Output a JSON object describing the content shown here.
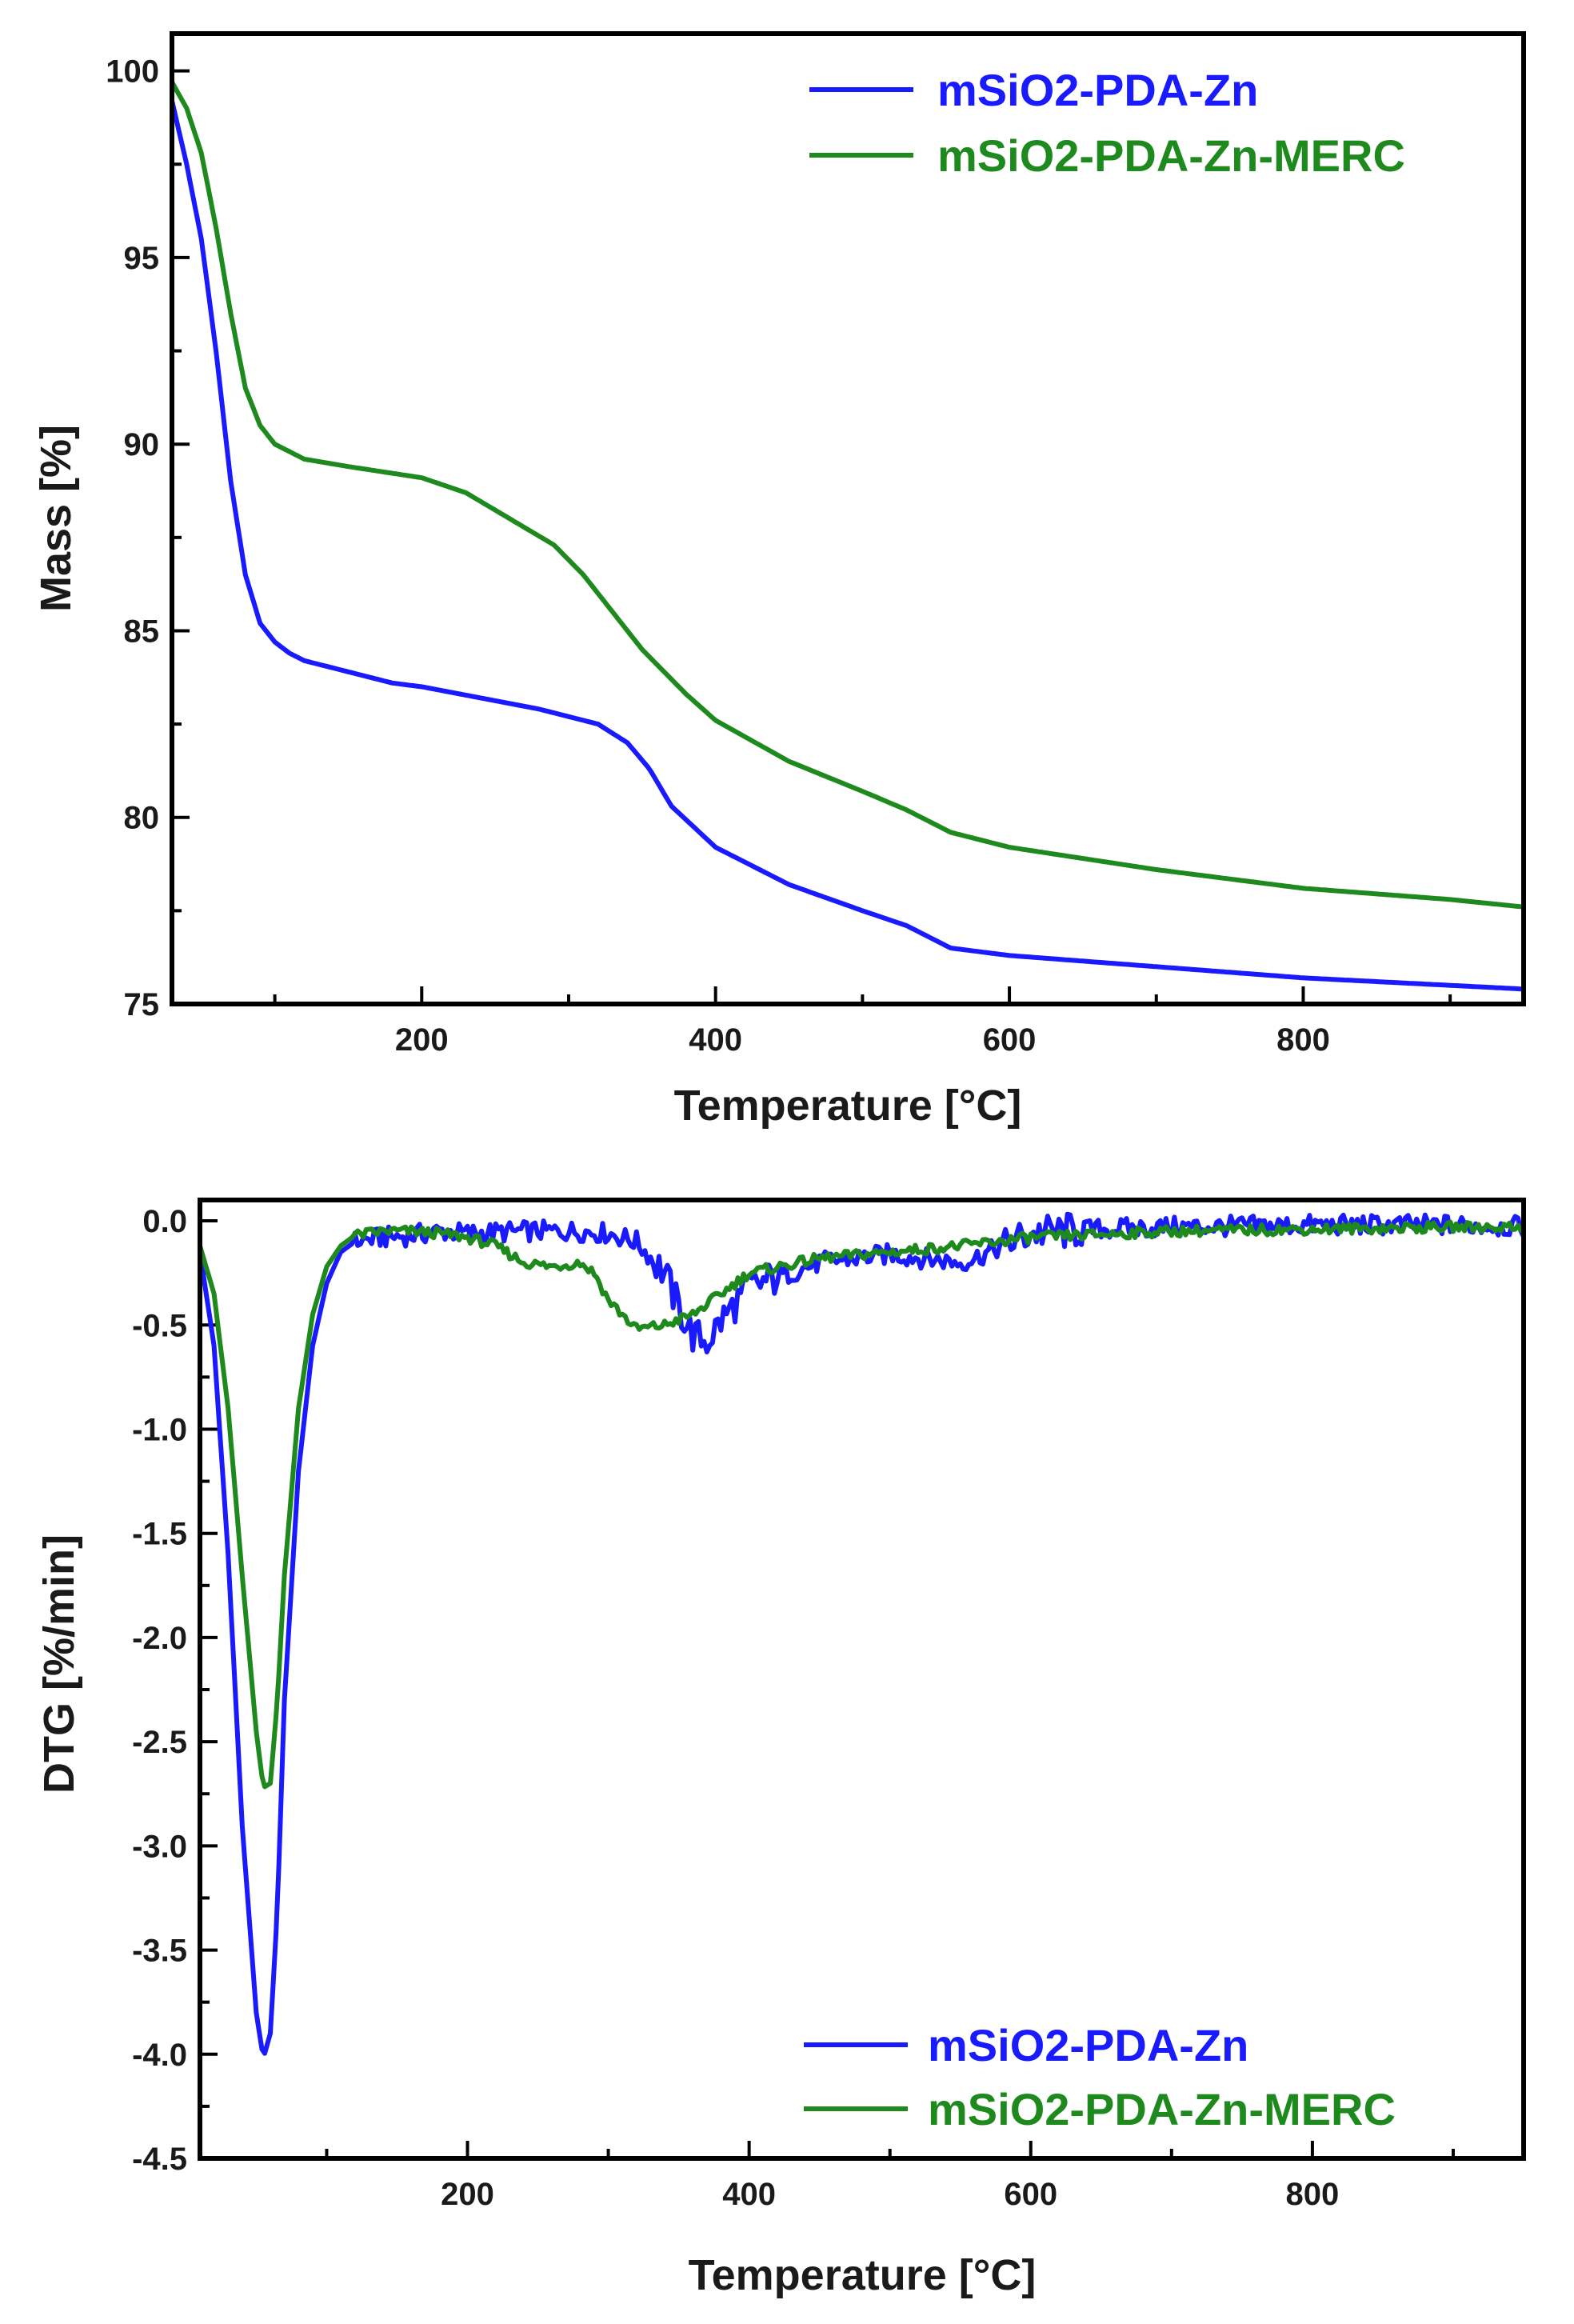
{
  "chart_data": [
    {
      "type": "line",
      "title": "",
      "xlabel": "Temperature [°C]",
      "ylabel": "Mass [%]",
      "xlim": [
        30,
        950
      ],
      "ylim": [
        75,
        101
      ],
      "xticks": [
        200,
        400,
        600,
        800
      ],
      "xtick_labels": [
        "200",
        "400",
        "600",
        "800"
      ],
      "yticks": [
        75,
        80,
        85,
        90,
        95,
        100
      ],
      "ytick_labels": [
        "75",
        "80",
        "85",
        "90",
        "95",
        "100"
      ],
      "grid": false,
      "legend_position": "top-right",
      "series": [
        {
          "name": "mSiO2-PDA-Zn",
          "color": "#1a1aff",
          "x": [
            30,
            40,
            50,
            60,
            70,
            80,
            90,
            100,
            110,
            120,
            140,
            160,
            180,
            200,
            240,
            280,
            320,
            340,
            355,
            370,
            400,
            450,
            500,
            530,
            560,
            600,
            700,
            800,
            900,
            950
          ],
          "y": [
            99.2,
            97.5,
            95.5,
            92.5,
            89.0,
            86.5,
            85.2,
            84.7,
            84.4,
            84.2,
            84.0,
            83.8,
            83.6,
            83.5,
            83.2,
            82.9,
            82.5,
            82.0,
            81.3,
            80.3,
            79.2,
            78.2,
            77.5,
            77.1,
            76.5,
            76.3,
            76.0,
            75.7,
            75.5,
            75.4
          ]
        },
        {
          "name": "mSiO2-PDA-Zn-MERC",
          "color": "#1e8a1e",
          "x": [
            30,
            40,
            50,
            60,
            70,
            80,
            90,
            100,
            120,
            150,
            200,
            230,
            260,
            290,
            310,
            330,
            350,
            380,
            400,
            450,
            500,
            530,
            560,
            600,
            700,
            800,
            900,
            950
          ],
          "y": [
            99.7,
            99.0,
            97.8,
            95.8,
            93.5,
            91.5,
            90.5,
            90.0,
            89.6,
            89.4,
            89.1,
            88.7,
            88.0,
            87.3,
            86.5,
            85.5,
            84.5,
            83.3,
            82.6,
            81.5,
            80.7,
            80.2,
            79.6,
            79.2,
            78.6,
            78.1,
            77.8,
            77.6
          ]
        }
      ]
    },
    {
      "type": "line",
      "title": "",
      "xlabel": "Temperature [°C]",
      "ylabel": "DTG [%/min]",
      "xlim": [
        10,
        950
      ],
      "ylim": [
        -4.5,
        0.1
      ],
      "xticks": [
        200,
        400,
        600,
        800
      ],
      "xtick_labels": [
        "200",
        "400",
        "600",
        "800"
      ],
      "yticks": [
        0.0,
        -0.5,
        -1.0,
        -1.5,
        -2.0,
        -2.5,
        -3.0,
        -3.5,
        -4.0,
        -4.5
      ],
      "ytick_labels": [
        "0.0",
        "-0.5",
        "-1.0",
        "-1.5",
        "-2.0",
        "-2.5",
        "-3.0",
        "-3.5",
        "-4.0",
        "-4.5"
      ],
      "grid": false,
      "legend_position": "bottom-right",
      "series": [
        {
          "name": "mSiO2-PDA-Zn",
          "color": "#1a1aff",
          "x": [
            10,
            20,
            30,
            40,
            50,
            55,
            60,
            65,
            70,
            80,
            90,
            100,
            110,
            120,
            140,
            160,
            180,
            200,
            240,
            280,
            300,
            320,
            340,
            350,
            360,
            370,
            380,
            400,
            450,
            500,
            550,
            560,
            600,
            650,
            700,
            800,
            900,
            950
          ],
          "y": [
            -0.15,
            -0.6,
            -1.6,
            -2.9,
            -3.8,
            -4.02,
            -3.9,
            -3.3,
            -2.3,
            -1.2,
            -0.6,
            -0.3,
            -0.15,
            -0.1,
            -0.08,
            -0.07,
            -0.05,
            -0.06,
            -0.05,
            -0.05,
            -0.06,
            -0.1,
            -0.25,
            -0.42,
            -0.55,
            -0.58,
            -0.48,
            -0.32,
            -0.2,
            -0.16,
            -0.2,
            -0.18,
            -0.06,
            -0.04,
            -0.03,
            -0.02,
            -0.02,
            -0.03
          ]
        },
        {
          "name": "mSiO2-PDA-Zn-MERC",
          "color": "#1e8a1e",
          "x": [
            10,
            20,
            30,
            40,
            50,
            55,
            60,
            65,
            70,
            80,
            90,
            100,
            110,
            120,
            140,
            160,
            180,
            200,
            220,
            240,
            260,
            280,
            290,
            300,
            320,
            340,
            360,
            380,
            400,
            450,
            500,
            550,
            600,
            700,
            800,
            900,
            950
          ],
          "y": [
            -0.12,
            -0.35,
            -0.9,
            -1.7,
            -2.45,
            -2.72,
            -2.7,
            -2.3,
            -1.7,
            -0.9,
            -0.45,
            -0.22,
            -0.12,
            -0.07,
            -0.05,
            -0.05,
            -0.06,
            -0.08,
            -0.12,
            -0.2,
            -0.22,
            -0.2,
            -0.25,
            -0.38,
            -0.52,
            -0.5,
            -0.45,
            -0.35,
            -0.25,
            -0.18,
            -0.15,
            -0.12,
            -0.08,
            -0.05,
            -0.04,
            -0.03,
            -0.03
          ]
        }
      ]
    }
  ]
}
